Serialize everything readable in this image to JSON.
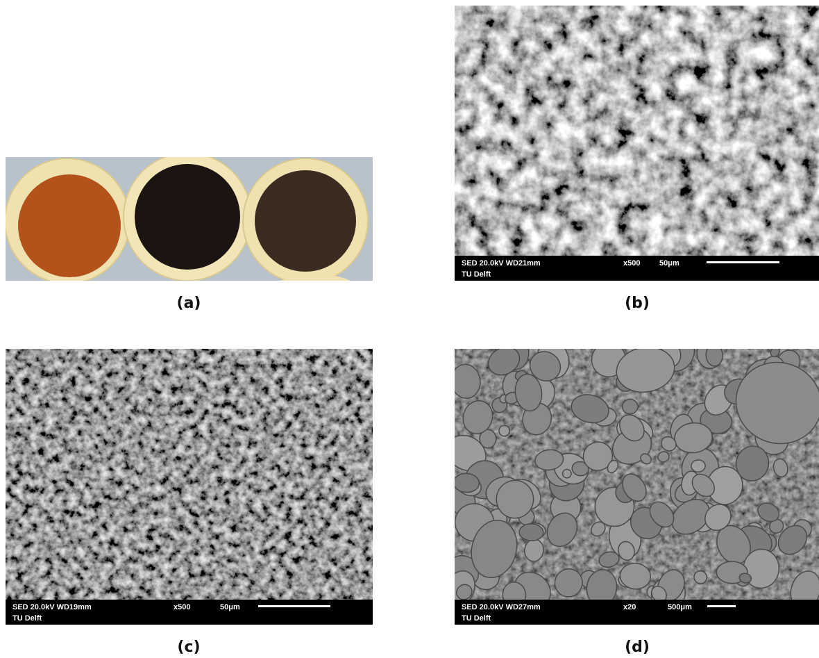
{
  "panels": [
    {
      "label": "(a)"
    },
    {
      "label": "(b)",
      "info": {
        "detector": "SED 20.0kV WD21mm",
        "institution": "TU Delft",
        "magnification": "x500",
        "scale": "50μm"
      }
    },
    {
      "label": "(c)",
      "info": {
        "detector": "SED 20.0kV WD19mm",
        "institution": "TU Delft",
        "magnification": "x500",
        "scale": "50μm"
      }
    },
    {
      "label": "(d)",
      "info": {
        "detector": "SED 20.0kV WD27mm",
        "institution": "TU Delft",
        "magnification": "x20",
        "scale": "500μm"
      }
    }
  ]
}
